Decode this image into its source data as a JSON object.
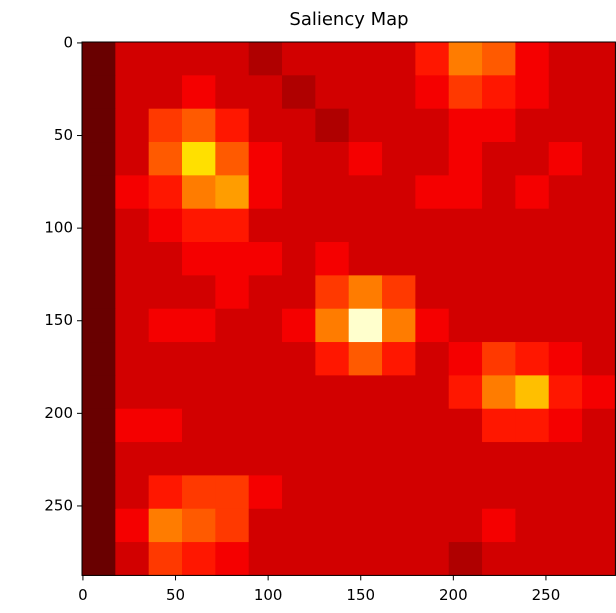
{
  "chart_data": {
    "type": "heatmap",
    "title": "Saliency Map",
    "cmap": "hot",
    "xlim": [
      -0.5,
      287.5
    ],
    "ylim": [
      287.5,
      -0.5
    ],
    "xticks": [
      0,
      50,
      100,
      150,
      200,
      250
    ],
    "yticks": [
      0,
      50,
      100,
      150,
      200,
      250
    ],
    "xbins": [
      -0.5,
      17.5,
      35.5,
      53.5,
      71.5,
      89.5,
      107.5,
      125.5,
      143.5,
      161.5,
      179.5,
      197.5,
      215.5,
      233.5,
      251.5,
      269.5,
      287.5
    ],
    "ybins": [
      -0.5,
      17.5,
      35.5,
      53.5,
      71.5,
      89.5,
      107.5,
      125.5,
      143.5,
      161.5,
      179.5,
      197.5,
      215.5,
      233.5,
      251.5,
      269.5,
      287.5
    ],
    "values": [
      [
        0.15,
        0.3,
        0.3,
        0.3,
        0.3,
        0.25,
        0.3,
        0.3,
        0.3,
        0.3,
        0.4,
        0.55,
        0.5,
        0.35,
        0.3,
        0.3
      ],
      [
        0.15,
        0.3,
        0.3,
        0.35,
        0.3,
        0.3,
        0.25,
        0.3,
        0.3,
        0.3,
        0.35,
        0.45,
        0.4,
        0.35,
        0.3,
        0.3
      ],
      [
        0.15,
        0.3,
        0.45,
        0.5,
        0.4,
        0.3,
        0.3,
        0.25,
        0.3,
        0.3,
        0.3,
        0.35,
        0.35,
        0.3,
        0.3,
        0.3
      ],
      [
        0.15,
        0.3,
        0.5,
        0.7,
        0.5,
        0.35,
        0.3,
        0.3,
        0.35,
        0.3,
        0.3,
        0.35,
        0.3,
        0.3,
        0.35,
        0.3
      ],
      [
        0.15,
        0.35,
        0.4,
        0.55,
        0.6,
        0.35,
        0.3,
        0.3,
        0.3,
        0.3,
        0.35,
        0.35,
        0.3,
        0.35,
        0.3,
        0.3
      ],
      [
        0.15,
        0.3,
        0.35,
        0.4,
        0.4,
        0.3,
        0.3,
        0.3,
        0.3,
        0.3,
        0.3,
        0.3,
        0.3,
        0.3,
        0.3,
        0.3
      ],
      [
        0.15,
        0.3,
        0.3,
        0.35,
        0.35,
        0.35,
        0.3,
        0.35,
        0.3,
        0.3,
        0.3,
        0.3,
        0.3,
        0.3,
        0.3,
        0.3
      ],
      [
        0.15,
        0.3,
        0.3,
        0.3,
        0.35,
        0.3,
        0.3,
        0.45,
        0.55,
        0.45,
        0.3,
        0.3,
        0.3,
        0.3,
        0.3,
        0.3
      ],
      [
        0.15,
        0.3,
        0.35,
        0.35,
        0.3,
        0.3,
        0.35,
        0.55,
        0.95,
        0.55,
        0.35,
        0.3,
        0.3,
        0.3,
        0.3,
        0.3
      ],
      [
        0.15,
        0.3,
        0.3,
        0.3,
        0.3,
        0.3,
        0.3,
        0.4,
        0.5,
        0.4,
        0.3,
        0.35,
        0.45,
        0.4,
        0.35,
        0.3
      ],
      [
        0.15,
        0.3,
        0.3,
        0.3,
        0.3,
        0.3,
        0.3,
        0.3,
        0.3,
        0.3,
        0.3,
        0.4,
        0.55,
        0.65,
        0.4,
        0.35
      ],
      [
        0.15,
        0.35,
        0.35,
        0.3,
        0.3,
        0.3,
        0.3,
        0.3,
        0.3,
        0.3,
        0.3,
        0.3,
        0.4,
        0.4,
        0.35,
        0.3
      ],
      [
        0.15,
        0.3,
        0.3,
        0.3,
        0.3,
        0.3,
        0.3,
        0.3,
        0.3,
        0.3,
        0.3,
        0.3,
        0.3,
        0.3,
        0.3,
        0.3
      ],
      [
        0.15,
        0.3,
        0.4,
        0.45,
        0.45,
        0.35,
        0.3,
        0.3,
        0.3,
        0.3,
        0.3,
        0.3,
        0.3,
        0.3,
        0.3,
        0.3
      ],
      [
        0.15,
        0.35,
        0.55,
        0.5,
        0.45,
        0.3,
        0.3,
        0.3,
        0.3,
        0.3,
        0.3,
        0.3,
        0.35,
        0.3,
        0.3,
        0.3
      ],
      [
        0.15,
        0.3,
        0.45,
        0.4,
        0.35,
        0.3,
        0.3,
        0.3,
        0.3,
        0.3,
        0.3,
        0.25,
        0.3,
        0.3,
        0.3,
        0.3
      ]
    ]
  }
}
